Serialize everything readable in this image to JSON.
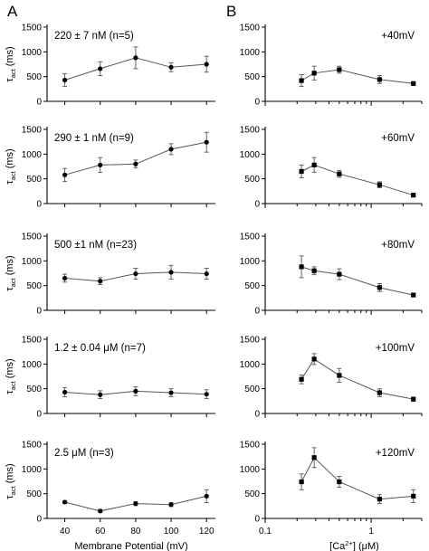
{
  "panel_letters": [
    "A",
    "B"
  ],
  "chart_data": [
    {
      "type": "line",
      "column": "A",
      "annotation": "220 ± 7 nM (n=5)",
      "ylabel_main": "τ",
      "ylabel_sub": "act",
      "ylabel_unit": " (ms)",
      "x": [
        40,
        60,
        80,
        100,
        120
      ],
      "y": [
        430,
        660,
        880,
        690,
        750
      ],
      "err": [
        130,
        140,
        220,
        90,
        160
      ],
      "yticks": [
        "0",
        "500",
        "1000",
        "1500"
      ],
      "ylim": [
        0,
        1500
      ],
      "xlim": [
        30,
        125
      ],
      "xscale": "linear",
      "marker": "circle"
    },
    {
      "type": "line",
      "column": "A",
      "annotation": "290 ± 1 nM (n=9)",
      "ylabel_main": "τ",
      "ylabel_sub": "act",
      "ylabel_unit": " (ms)",
      "x": [
        40,
        60,
        80,
        100,
        120
      ],
      "y": [
        580,
        780,
        800,
        1100,
        1240
      ],
      "err": [
        130,
        150,
        80,
        110,
        200
      ],
      "yticks": [
        "0",
        "500",
        "1000",
        "1500"
      ],
      "ylim": [
        0,
        1500
      ],
      "xlim": [
        30,
        125
      ],
      "xscale": "linear",
      "marker": "circle"
    },
    {
      "type": "line",
      "column": "A",
      "annotation": "500 ±1 nM (n=23)",
      "ylabel_main": "τ",
      "ylabel_sub": "act",
      "ylabel_unit": " (ms)",
      "x": [
        40,
        60,
        80,
        100,
        120
      ],
      "y": [
        650,
        590,
        740,
        770,
        740
      ],
      "err": [
        80,
        70,
        110,
        140,
        110
      ],
      "yticks": [
        "0",
        "500",
        "1000",
        "1500"
      ],
      "ylim": [
        0,
        1500
      ],
      "xlim": [
        30,
        125
      ],
      "xscale": "linear",
      "marker": "circle"
    },
    {
      "type": "line",
      "column": "A",
      "annotation": "1.2 ± 0.04 μM (n=7)",
      "ylabel_main": "τ",
      "ylabel_sub": "act",
      "ylabel_unit": " (ms)",
      "x": [
        40,
        60,
        80,
        100,
        120
      ],
      "y": [
        430,
        380,
        450,
        420,
        390
      ],
      "err": [
        90,
        80,
        90,
        80,
        90
      ],
      "yticks": [
        "0",
        "500",
        "1000",
        "1500"
      ],
      "ylim": [
        0,
        1500
      ],
      "xlim": [
        30,
        125
      ],
      "xscale": "linear",
      "marker": "circle"
    },
    {
      "type": "line",
      "column": "A",
      "annotation": "2.5 μM (n=3)",
      "ylabel_main": "τ",
      "ylabel_sub": "act",
      "ylabel_unit": " (ms)",
      "x": [
        40,
        60,
        80,
        100,
        120
      ],
      "y": [
        330,
        150,
        300,
        280,
        450
      ],
      "err": [
        30,
        30,
        40,
        40,
        130
      ],
      "xticks": [
        "40",
        "60",
        "80",
        "100",
        "120"
      ],
      "xlabel": "Membrane Potential (mV)",
      "yticks": [
        "0",
        "500",
        "1000",
        "1500"
      ],
      "ylim": [
        0,
        1500
      ],
      "xlim": [
        30,
        125
      ],
      "xscale": "linear",
      "marker": "circle"
    },
    {
      "type": "line",
      "column": "B",
      "annotation": "+40mV",
      "x": [
        0.22,
        0.29,
        0.5,
        1.2,
        2.5
      ],
      "y": [
        420,
        570,
        640,
        440,
        360
      ],
      "err": [
        120,
        140,
        70,
        80,
        30
      ],
      "yticks": [
        "0",
        "500",
        "1000",
        "1500"
      ],
      "ylim": [
        0,
        1500
      ],
      "xlim": [
        0.1,
        3
      ],
      "xscale": "log",
      "marker": "square"
    },
    {
      "type": "line",
      "column": "B",
      "annotation": "+60mV",
      "x": [
        0.22,
        0.29,
        0.5,
        1.2,
        2.5
      ],
      "y": [
        650,
        780,
        600,
        380,
        170
      ],
      "err": [
        130,
        150,
        70,
        60,
        20
      ],
      "yticks": [
        "0",
        "500",
        "1000",
        "1500"
      ],
      "ylim": [
        0,
        1500
      ],
      "xlim": [
        0.1,
        3
      ],
      "xscale": "log",
      "marker": "square"
    },
    {
      "type": "line",
      "column": "B",
      "annotation": "+80mV",
      "x": [
        0.22,
        0.29,
        0.5,
        1.2,
        2.5
      ],
      "y": [
        880,
        800,
        730,
        460,
        310
      ],
      "err": [
        220,
        80,
        110,
        80,
        30
      ],
      "yticks": [
        "0",
        "500",
        "1000",
        "1500"
      ],
      "ylim": [
        0,
        1500
      ],
      "xlim": [
        0.1,
        3
      ],
      "xscale": "log",
      "marker": "square"
    },
    {
      "type": "line",
      "column": "B",
      "annotation": "+100mV",
      "x": [
        0.22,
        0.29,
        0.5,
        1.2,
        2.5
      ],
      "y": [
        690,
        1100,
        770,
        420,
        290
      ],
      "err": [
        90,
        110,
        140,
        80,
        40
      ],
      "yticks": [
        "0",
        "500",
        "1000",
        "1500"
      ],
      "ylim": [
        0,
        1500
      ],
      "xlim": [
        0.1,
        3
      ],
      "xscale": "log",
      "marker": "square"
    },
    {
      "type": "line",
      "column": "B",
      "annotation": "+120mV",
      "x": [
        0.22,
        0.29,
        0.5,
        1.2,
        2.5
      ],
      "y": [
        740,
        1230,
        740,
        390,
        450
      ],
      "err": [
        160,
        200,
        110,
        90,
        130
      ],
      "xticks": [
        "0.1",
        "1"
      ],
      "xlabel_main": "[Ca",
      "xlabel_sup": "2+",
      "xlabel_rest": "]   (μM)",
      "yticks": [
        "0",
        "500",
        "1000",
        "1500"
      ],
      "ylim": [
        0,
        1500
      ],
      "xlim": [
        0.1,
        3
      ],
      "xscale": "log",
      "marker": "square"
    }
  ]
}
